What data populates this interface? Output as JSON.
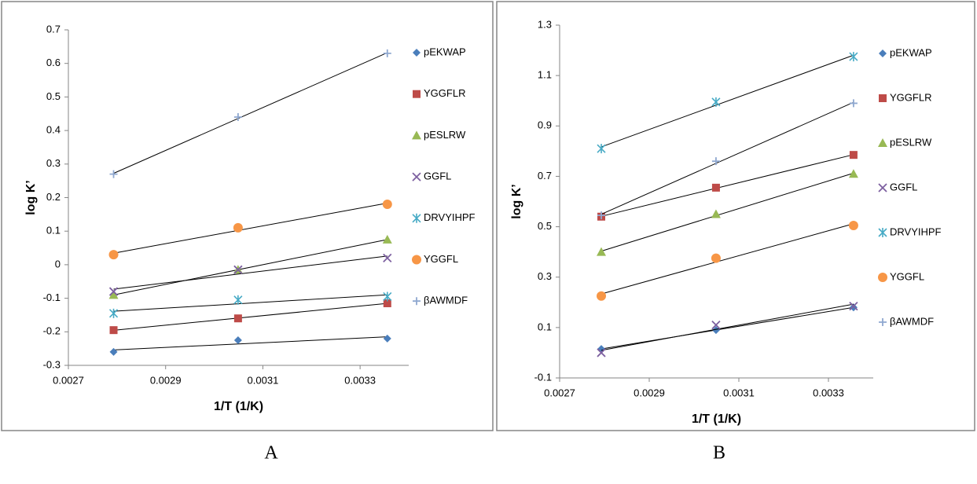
{
  "chart_data": [
    {
      "type": "scatter",
      "panel_label": "A",
      "x_label": "1/T (1/K)",
      "y_label": "log K’",
      "x": [
        0.002793,
        0.003049,
        0.003356
      ],
      "xlim": [
        0.0027,
        0.0034
      ],
      "xticks": [
        0.0027,
        0.0029,
        0.0031,
        0.0033
      ],
      "ylim": [
        -0.3,
        0.7
      ],
      "yticks": [
        -0.3,
        -0.2,
        -0.1,
        0,
        0.1,
        0.2,
        0.3,
        0.4,
        0.5,
        0.6,
        0.7
      ],
      "trendline": true,
      "series": [
        {
          "name": "pEKWAP",
          "color": "#4a7ebb",
          "marker": "diamond",
          "values": [
            -0.26,
            -0.225,
            -0.22
          ]
        },
        {
          "name": "YGGFLR",
          "color": "#be4b48",
          "marker": "square",
          "values": [
            -0.195,
            -0.16,
            -0.115
          ]
        },
        {
          "name": "pESLRW",
          "color": "#98b954",
          "marker": "triangle",
          "values": [
            -0.09,
            -0.015,
            0.075
          ]
        },
        {
          "name": "GGFL",
          "color": "#7d60a0",
          "marker": "cross",
          "values": [
            -0.08,
            -0.015,
            0.02
          ]
        },
        {
          "name": "DRVYIHPF",
          "color": "#46aac5",
          "marker": "star",
          "values": [
            -0.145,
            -0.105,
            -0.095
          ]
        },
        {
          "name": "YGGFL",
          "color": "#f79646",
          "marker": "circle",
          "values": [
            0.03,
            0.11,
            0.18
          ]
        },
        {
          "name": "βAWMDF",
          "color": "#8fa8d0",
          "marker": "plus",
          "values": [
            0.27,
            0.44,
            0.63
          ]
        }
      ]
    },
    {
      "type": "scatter",
      "panel_label": "B",
      "x_label": "1/T (1/K)",
      "y_label": "log K’",
      "x": [
        0.002793,
        0.003049,
        0.003356
      ],
      "xlim": [
        0.0027,
        0.0034
      ],
      "xticks": [
        0.0027,
        0.0029,
        0.0031,
        0.0033
      ],
      "ylim": [
        -0.1,
        1.3
      ],
      "yticks": [
        -0.1,
        0.1,
        0.3,
        0.5,
        0.7,
        0.9,
        1.1,
        1.3
      ],
      "trendline": true,
      "series": [
        {
          "name": "pEKWAP",
          "color": "#4a7ebb",
          "marker": "diamond",
          "values": [
            0.015,
            0.09,
            0.18
          ]
        },
        {
          "name": "YGGFLR",
          "color": "#be4b48",
          "marker": "square",
          "values": [
            0.54,
            0.655,
            0.785
          ]
        },
        {
          "name": "pESLRW",
          "color": "#98b954",
          "marker": "triangle",
          "values": [
            0.4,
            0.55,
            0.71
          ]
        },
        {
          "name": "GGFL",
          "color": "#7d60a0",
          "marker": "cross",
          "values": [
            0.0,
            0.11,
            0.185
          ]
        },
        {
          "name": "DRVYIHPF",
          "color": "#46aac5",
          "marker": "star",
          "values": [
            0.81,
            0.995,
            1.175
          ]
        },
        {
          "name": "YGGFL",
          "color": "#f79646",
          "marker": "circle",
          "values": [
            0.225,
            0.375,
            0.505
          ]
        },
        {
          "name": "βAWMDF",
          "color": "#8fa8d0",
          "marker": "plus",
          "values": [
            0.545,
            0.76,
            0.99
          ]
        }
      ]
    }
  ]
}
